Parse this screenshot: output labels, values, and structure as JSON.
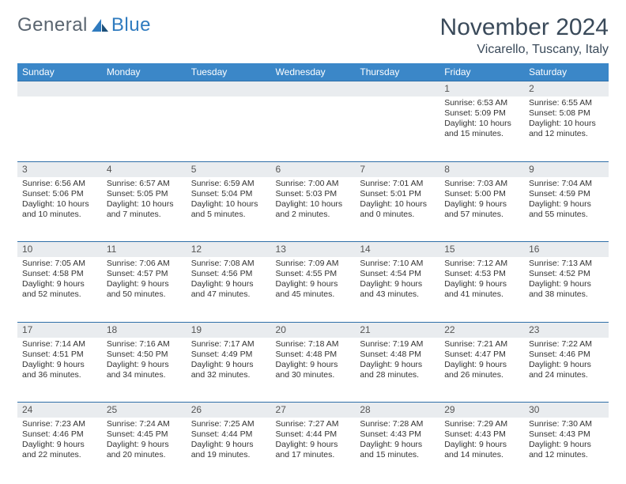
{
  "brand": {
    "part1": "General",
    "part2": "Blue"
  },
  "title": "November 2024",
  "subtitle": "Vicarello, Tuscany, Italy",
  "colors": {
    "header_bg": "#3b87c8",
    "header_text": "#ffffff",
    "daynum_bg": "#e9ecef",
    "row_border": "#2f6fa8",
    "text": "#333333",
    "title_text": "#3a4a5a",
    "logo_gray": "#5a6570",
    "logo_blue": "#2f7bbf"
  },
  "layout": {
    "cols": 7,
    "rows": 5,
    "day_font_size": 12,
    "detail_font_size": 10.5
  },
  "weekdays": [
    "Sunday",
    "Monday",
    "Tuesday",
    "Wednesday",
    "Thursday",
    "Friday",
    "Saturday"
  ],
  "weeks": [
    [
      null,
      null,
      null,
      null,
      null,
      {
        "n": "1",
        "sunrise": "Sunrise: 6:53 AM",
        "sunset": "Sunset: 5:09 PM",
        "d1": "Daylight: 10 hours",
        "d2": "and 15 minutes."
      },
      {
        "n": "2",
        "sunrise": "Sunrise: 6:55 AM",
        "sunset": "Sunset: 5:08 PM",
        "d1": "Daylight: 10 hours",
        "d2": "and 12 minutes."
      }
    ],
    [
      {
        "n": "3",
        "sunrise": "Sunrise: 6:56 AM",
        "sunset": "Sunset: 5:06 PM",
        "d1": "Daylight: 10 hours",
        "d2": "and 10 minutes."
      },
      {
        "n": "4",
        "sunrise": "Sunrise: 6:57 AM",
        "sunset": "Sunset: 5:05 PM",
        "d1": "Daylight: 10 hours",
        "d2": "and 7 minutes."
      },
      {
        "n": "5",
        "sunrise": "Sunrise: 6:59 AM",
        "sunset": "Sunset: 5:04 PM",
        "d1": "Daylight: 10 hours",
        "d2": "and 5 minutes."
      },
      {
        "n": "6",
        "sunrise": "Sunrise: 7:00 AM",
        "sunset": "Sunset: 5:03 PM",
        "d1": "Daylight: 10 hours",
        "d2": "and 2 minutes."
      },
      {
        "n": "7",
        "sunrise": "Sunrise: 7:01 AM",
        "sunset": "Sunset: 5:01 PM",
        "d1": "Daylight: 10 hours",
        "d2": "and 0 minutes."
      },
      {
        "n": "8",
        "sunrise": "Sunrise: 7:03 AM",
        "sunset": "Sunset: 5:00 PM",
        "d1": "Daylight: 9 hours",
        "d2": "and 57 minutes."
      },
      {
        "n": "9",
        "sunrise": "Sunrise: 7:04 AM",
        "sunset": "Sunset: 4:59 PM",
        "d1": "Daylight: 9 hours",
        "d2": "and 55 minutes."
      }
    ],
    [
      {
        "n": "10",
        "sunrise": "Sunrise: 7:05 AM",
        "sunset": "Sunset: 4:58 PM",
        "d1": "Daylight: 9 hours",
        "d2": "and 52 minutes."
      },
      {
        "n": "11",
        "sunrise": "Sunrise: 7:06 AM",
        "sunset": "Sunset: 4:57 PM",
        "d1": "Daylight: 9 hours",
        "d2": "and 50 minutes."
      },
      {
        "n": "12",
        "sunrise": "Sunrise: 7:08 AM",
        "sunset": "Sunset: 4:56 PM",
        "d1": "Daylight: 9 hours",
        "d2": "and 47 minutes."
      },
      {
        "n": "13",
        "sunrise": "Sunrise: 7:09 AM",
        "sunset": "Sunset: 4:55 PM",
        "d1": "Daylight: 9 hours",
        "d2": "and 45 minutes."
      },
      {
        "n": "14",
        "sunrise": "Sunrise: 7:10 AM",
        "sunset": "Sunset: 4:54 PM",
        "d1": "Daylight: 9 hours",
        "d2": "and 43 minutes."
      },
      {
        "n": "15",
        "sunrise": "Sunrise: 7:12 AM",
        "sunset": "Sunset: 4:53 PM",
        "d1": "Daylight: 9 hours",
        "d2": "and 41 minutes."
      },
      {
        "n": "16",
        "sunrise": "Sunrise: 7:13 AM",
        "sunset": "Sunset: 4:52 PM",
        "d1": "Daylight: 9 hours",
        "d2": "and 38 minutes."
      }
    ],
    [
      {
        "n": "17",
        "sunrise": "Sunrise: 7:14 AM",
        "sunset": "Sunset: 4:51 PM",
        "d1": "Daylight: 9 hours",
        "d2": "and 36 minutes."
      },
      {
        "n": "18",
        "sunrise": "Sunrise: 7:16 AM",
        "sunset": "Sunset: 4:50 PM",
        "d1": "Daylight: 9 hours",
        "d2": "and 34 minutes."
      },
      {
        "n": "19",
        "sunrise": "Sunrise: 7:17 AM",
        "sunset": "Sunset: 4:49 PM",
        "d1": "Daylight: 9 hours",
        "d2": "and 32 minutes."
      },
      {
        "n": "20",
        "sunrise": "Sunrise: 7:18 AM",
        "sunset": "Sunset: 4:48 PM",
        "d1": "Daylight: 9 hours",
        "d2": "and 30 minutes."
      },
      {
        "n": "21",
        "sunrise": "Sunrise: 7:19 AM",
        "sunset": "Sunset: 4:48 PM",
        "d1": "Daylight: 9 hours",
        "d2": "and 28 minutes."
      },
      {
        "n": "22",
        "sunrise": "Sunrise: 7:21 AM",
        "sunset": "Sunset: 4:47 PM",
        "d1": "Daylight: 9 hours",
        "d2": "and 26 minutes."
      },
      {
        "n": "23",
        "sunrise": "Sunrise: 7:22 AM",
        "sunset": "Sunset: 4:46 PM",
        "d1": "Daylight: 9 hours",
        "d2": "and 24 minutes."
      }
    ],
    [
      {
        "n": "24",
        "sunrise": "Sunrise: 7:23 AM",
        "sunset": "Sunset: 4:46 PM",
        "d1": "Daylight: 9 hours",
        "d2": "and 22 minutes."
      },
      {
        "n": "25",
        "sunrise": "Sunrise: 7:24 AM",
        "sunset": "Sunset: 4:45 PM",
        "d1": "Daylight: 9 hours",
        "d2": "and 20 minutes."
      },
      {
        "n": "26",
        "sunrise": "Sunrise: 7:25 AM",
        "sunset": "Sunset: 4:44 PM",
        "d1": "Daylight: 9 hours",
        "d2": "and 19 minutes."
      },
      {
        "n": "27",
        "sunrise": "Sunrise: 7:27 AM",
        "sunset": "Sunset: 4:44 PM",
        "d1": "Daylight: 9 hours",
        "d2": "and 17 minutes."
      },
      {
        "n": "28",
        "sunrise": "Sunrise: 7:28 AM",
        "sunset": "Sunset: 4:43 PM",
        "d1": "Daylight: 9 hours",
        "d2": "and 15 minutes."
      },
      {
        "n": "29",
        "sunrise": "Sunrise: 7:29 AM",
        "sunset": "Sunset: 4:43 PM",
        "d1": "Daylight: 9 hours",
        "d2": "and 14 minutes."
      },
      {
        "n": "30",
        "sunrise": "Sunrise: 7:30 AM",
        "sunset": "Sunset: 4:43 PM",
        "d1": "Daylight: 9 hours",
        "d2": "and 12 minutes."
      }
    ]
  ]
}
